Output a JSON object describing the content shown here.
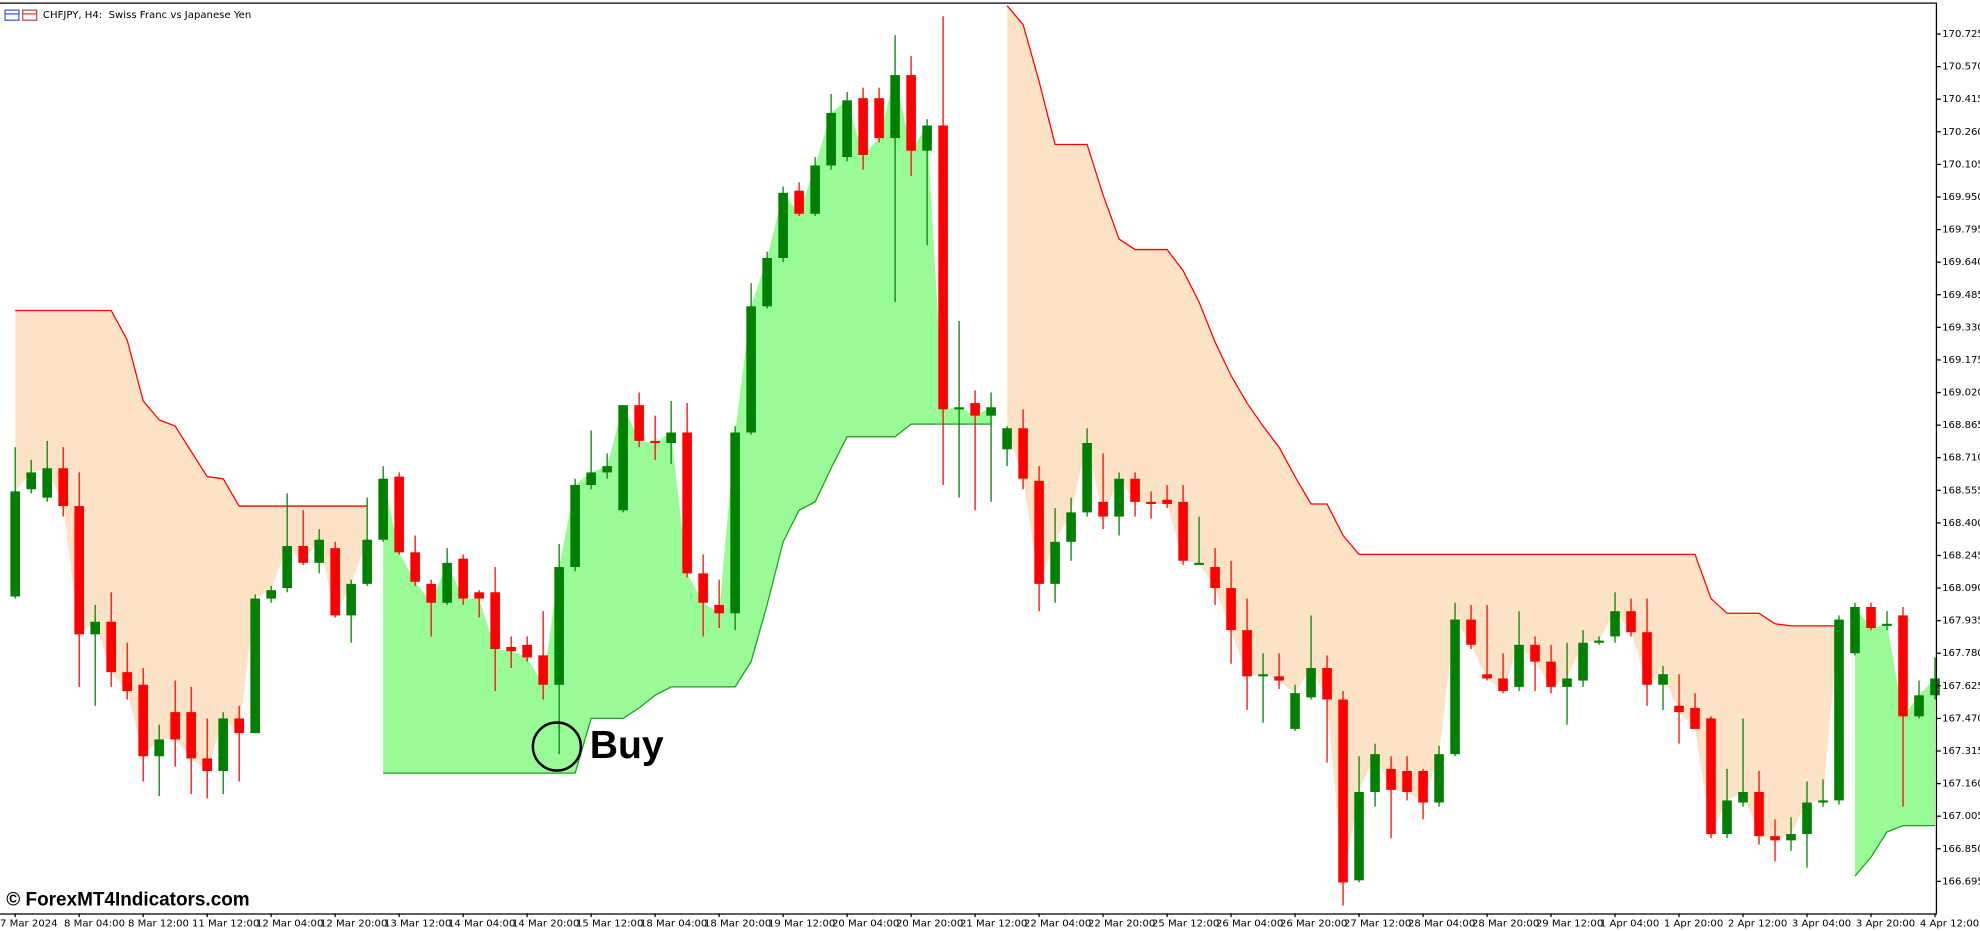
{
  "chart_data": {
    "type": "candlestick",
    "title": "CHFJPY, H4:  Swiss Franc vs Japanese Yen",
    "watermark": "© ForexMT4Indicators.com",
    "annotation": "Buy",
    "up_color": "#008000",
    "down_color": "#ff0000",
    "categories": [
      "7 Mar 2024",
      null,
      null,
      null,
      "8 Mar 04:00",
      null,
      null,
      null,
      "8 Mar 12:00",
      null,
      null,
      null,
      "11 Mar 12:00",
      null,
      null,
      null,
      "12 Mar 04:00",
      null,
      null,
      null,
      "12 Mar 20:00",
      null,
      null,
      null,
      "13 Mar 12:00",
      null,
      null,
      null,
      "14 Mar 04:00",
      null,
      null,
      null,
      "14 Mar 20:00",
      null,
      null,
      null,
      "15 Mar 12:00",
      null,
      null,
      null,
      "18 Mar 04:00",
      null,
      null,
      null,
      "18 Mar 20:00",
      null,
      null,
      null,
      "19 Mar 12:00",
      null,
      null,
      null,
      "20 Mar 04:00",
      null,
      null,
      null,
      "20 Mar 20:00",
      null,
      null,
      null,
      "21 Mar 12:00",
      null,
      null,
      null,
      "22 Mar 04:00",
      null,
      null,
      null,
      "22 Mar 20:00",
      null,
      null,
      null,
      "25 Mar 12:00",
      null,
      null,
      null,
      "26 Mar 04:00",
      null,
      null,
      null,
      "26 Mar 20:00",
      null,
      null,
      null,
      "27 Mar 12:00",
      null,
      null,
      null,
      "28 Mar 04:00",
      null,
      null,
      null,
      "28 Mar 20:00",
      null,
      null,
      null,
      "29 Mar 12:00",
      null,
      null,
      null,
      "1 Apr 04:00",
      null,
      null,
      null,
      "1 Apr 20:00",
      null,
      null,
      null,
      "2 Apr 12:00",
      null,
      null,
      null,
      "3 Apr 04:00",
      null,
      null,
      null,
      "3 Apr 20:00",
      null,
      null,
      null,
      "4 Apr 12:00"
    ],
    "open": [
      168.05,
      168.56,
      168.52,
      168.66,
      168.48,
      167.87,
      167.93,
      167.69,
      167.63,
      167.29,
      167.5,
      167.5,
      167.28,
      167.22,
      167.47,
      167.4,
      168.04,
      168.09,
      168.29,
      168.21,
      168.28,
      167.96,
      168.11,
      168.32,
      168.62,
      168.26,
      168.11,
      168.02,
      168.23,
      168.07,
      168.07,
      167.81,
      167.82,
      167.77,
      167.63,
      168.19,
      168.58,
      168.64,
      168.46,
      168.96,
      168.79,
      168.78,
      168.83,
      168.16,
      168.01,
      167.97,
      168.83,
      169.43,
      169.66,
      169.98,
      169.87,
      170.1,
      170.14,
      170.42,
      170.42,
      170.23,
      170.53,
      170.17,
      170.29,
      168.94,
      168.97,
      168.91,
      168.75,
      168.85,
      168.6,
      168.11,
      168.31,
      168.45,
      168.5,
      168.43,
      168.61,
      168.5,
      168.51,
      168.5,
      168.2,
      168.19,
      168.09,
      167.89,
      167.67,
      167.67,
      167.42,
      167.57,
      167.71,
      167.56,
      166.7,
      167.12,
      167.23,
      167.22,
      167.22,
      167.07,
      167.3,
      167.94,
      167.68,
      167.66,
      167.62,
      167.82,
      167.74,
      167.62,
      167.65,
      167.83,
      167.86,
      167.98,
      167.88,
      167.63,
      167.53,
      167.52,
      167.47,
      166.92,
      167.07,
      167.12,
      166.91,
      166.89,
      166.92,
      167.07,
      167.08,
      167.78,
      168.0,
      167.91,
      167.96,
      167.48,
      167.58
    ],
    "high": [
      168.76,
      168.7,
      168.79,
      168.76,
      168.64,
      168.01,
      168.07,
      167.83,
      167.71,
      167.44,
      167.65,
      167.62,
      167.47,
      167.5,
      167.53,
      168.06,
      168.1,
      168.54,
      168.46,
      168.37,
      168.31,
      168.13,
      168.52,
      168.67,
      168.64,
      168.34,
      168.13,
      168.28,
      168.25,
      168.08,
      168.19,
      167.86,
      167.86,
      167.98,
      168.3,
      168.61,
      168.84,
      168.73,
      168.96,
      169.02,
      168.91,
      168.98,
      168.97,
      168.25,
      168.13,
      168.86,
      169.54,
      169.69,
      170.0,
      170.02,
      170.14,
      170.44,
      170.45,
      170.47,
      170.47,
      170.72,
      170.62,
      170.32,
      170.81,
      169.36,
      169.03,
      169.02,
      168.86,
      168.94,
      168.67,
      168.47,
      168.52,
      168.85,
      168.73,
      168.64,
      168.64,
      168.55,
      168.58,
      168.58,
      168.43,
      168.28,
      168.22,
      168.04,
      167.78,
      167.78,
      167.63,
      167.96,
      167.77,
      167.6,
      167.29,
      167.35,
      167.29,
      167.29,
      167.23,
      167.34,
      168.02,
      168.01,
      168.01,
      167.78,
      167.98,
      167.86,
      167.82,
      167.83,
      167.89,
      167.86,
      168.07,
      168.04,
      168.04,
      167.72,
      167.68,
      167.59,
      167.48,
      167.23,
      167.47,
      167.22,
      166.99,
      167.0,
      167.17,
      167.18,
      167.96,
      168.02,
      168.02,
      167.98,
      168.0,
      167.65,
      167.76
    ],
    "low": [
      168.04,
      168.54,
      168.5,
      168.43,
      167.62,
      167.53,
      167.62,
      167.56,
      167.17,
      167.1,
      167.24,
      167.11,
      167.09,
      167.11,
      167.17,
      167.4,
      168.02,
      168.07,
      168.2,
      168.16,
      167.95,
      167.83,
      168.1,
      168.31,
      168.25,
      168.1,
      167.86,
      168.01,
      168.01,
      167.95,
      167.6,
      167.71,
      167.74,
      167.56,
      167.3,
      168.17,
      168.56,
      168.61,
      168.45,
      168.76,
      168.7,
      168.68,
      168.14,
      167.86,
      167.9,
      167.89,
      168.82,
      169.42,
      169.64,
      169.86,
      169.86,
      170.08,
      170.12,
      170.08,
      170.21,
      169.45,
      170.05,
      169.72,
      168.58,
      168.52,
      168.46,
      168.5,
      168.67,
      168.56,
      167.98,
      168.02,
      168.22,
      168.43,
      168.37,
      168.34,
      168.43,
      168.42,
      168.47,
      168.2,
      168.2,
      168.01,
      167.73,
      167.51,
      167.45,
      167.61,
      167.41,
      167.56,
      167.26,
      166.58,
      166.69,
      167.05,
      166.9,
      167.08,
      166.99,
      167.05,
      167.29,
      167.8,
      167.65,
      167.59,
      167.6,
      167.6,
      167.59,
      167.44,
      167.62,
      167.82,
      167.83,
      167.86,
      167.53,
      167.51,
      167.35,
      167.42,
      166.9,
      166.9,
      167.05,
      166.87,
      166.79,
      166.84,
      166.76,
      167.05,
      167.06,
      167.77,
      167.89,
      167.89,
      167.05,
      167.47,
      167.56
    ],
    "close": [
      168.55,
      168.64,
      168.66,
      168.48,
      167.87,
      167.93,
      167.69,
      167.6,
      167.29,
      167.37,
      167.37,
      167.28,
      167.22,
      167.47,
      167.4,
      168.04,
      168.08,
      168.29,
      168.21,
      168.32,
      167.96,
      168.11,
      168.32,
      168.61,
      168.26,
      168.12,
      168.02,
      168.21,
      168.04,
      168.04,
      167.8,
      167.79,
      167.76,
      167.63,
      168.19,
      168.58,
      168.64,
      168.67,
      168.96,
      168.79,
      168.78,
      168.83,
      168.16,
      168.02,
      167.97,
      168.83,
      169.43,
      169.66,
      169.97,
      169.87,
      170.1,
      170.35,
      170.41,
      170.15,
      170.23,
      170.53,
      170.17,
      170.29,
      168.94,
      168.95,
      168.91,
      168.95,
      168.85,
      168.61,
      168.11,
      168.31,
      168.45,
      168.78,
      168.43,
      168.61,
      168.5,
      168.49,
      168.49,
      168.22,
      168.21,
      168.09,
      167.89,
      167.67,
      167.68,
      167.65,
      167.59,
      167.71,
      167.56,
      166.69,
      167.12,
      167.3,
      167.13,
      167.12,
      167.07,
      167.3,
      167.94,
      167.82,
      167.66,
      167.6,
      167.82,
      167.74,
      167.62,
      167.66,
      167.83,
      167.84,
      167.98,
      167.88,
      167.63,
      167.68,
      167.5,
      167.42,
      166.92,
      167.08,
      167.12,
      166.91,
      166.89,
      166.92,
      167.07,
      167.08,
      167.94,
      168.0,
      167.9,
      167.92,
      167.48,
      167.58,
      167.66
    ],
    "resistance": {
      "color": "#ff0000",
      "fill": "#fde3c5",
      "values": [
        169.41,
        169.41,
        169.41,
        169.41,
        169.41,
        169.41,
        169.41,
        169.27,
        168.98,
        168.89,
        168.86,
        168.74,
        168.62,
        168.61,
        168.48,
        168.48,
        168.48,
        168.48,
        168.48,
        168.48,
        168.48,
        168.48,
        168.48,
        null,
        null,
        null,
        null,
        null,
        null,
        null,
        null,
        null,
        null,
        null,
        null,
        null,
        null,
        null,
        null,
        null,
        null,
        null,
        null,
        null,
        null,
        null,
        null,
        null,
        null,
        null,
        null,
        null,
        null,
        null,
        null,
        null,
        null,
        null,
        null,
        null,
        null,
        null,
        170.86,
        170.77,
        170.5,
        170.2,
        170.2,
        170.2,
        169.96,
        169.75,
        169.7,
        169.7,
        169.7,
        169.6,
        169.45,
        169.26,
        169.1,
        168.97,
        168.86,
        168.76,
        168.62,
        168.49,
        168.49,
        168.34,
        168.25,
        168.25,
        168.25,
        168.25,
        168.25,
        168.25,
        168.25,
        168.25,
        168.25,
        168.25,
        168.25,
        168.25,
        168.25,
        168.25,
        168.25,
        168.25,
        168.25,
        168.25,
        168.25,
        168.25,
        168.25,
        168.25,
        168.04,
        167.97,
        167.97,
        167.97,
        167.92,
        167.91,
        167.91,
        167.91,
        167.91,
        null,
        null,
        null,
        null,
        null,
        null
      ]
    },
    "support": {
      "color": "#1e9e1e",
      "fill": "#98fb98",
      "values": [
        null,
        null,
        null,
        null,
        null,
        null,
        null,
        null,
        null,
        null,
        null,
        null,
        null,
        null,
        null,
        null,
        null,
        null,
        null,
        null,
        null,
        null,
        null,
        167.21,
        167.21,
        167.21,
        167.21,
        167.21,
        167.21,
        167.21,
        167.21,
        167.21,
        167.21,
        167.21,
        167.21,
        167.21,
        167.47,
        167.47,
        167.47,
        167.52,
        167.58,
        167.62,
        167.62,
        167.62,
        167.62,
        167.62,
        167.74,
        168.01,
        168.31,
        168.46,
        168.5,
        168.66,
        168.81,
        168.81,
        168.81,
        168.81,
        168.87,
        168.87,
        168.87,
        168.87,
        168.87,
        168.87,
        null,
        null,
        null,
        null,
        null,
        null,
        null,
        null,
        null,
        null,
        null,
        null,
        null,
        null,
        null,
        null,
        null,
        null,
        null,
        null,
        null,
        null,
        null,
        null,
        null,
        null,
        null,
        null,
        null,
        null,
        null,
        null,
        null,
        null,
        null,
        null,
        null,
        null,
        null,
        null,
        null,
        null,
        null,
        null,
        null,
        null,
        null,
        null,
        null,
        null,
        null,
        null,
        null,
        166.72,
        166.81,
        166.93,
        166.96,
        166.96,
        166.96
      ]
    },
    "ylim": [
      166.543,
      170.869
    ],
    "yticks": [
      170.725,
      {
        "value": 170.57,
        "label": "170.570"
      },
      170.415,
      {
        "value": 170.26,
        "label": "170.260"
      },
      170.105,
      {
        "value": 169.95,
        "label": "169.950"
      },
      169.795,
      {
        "value": 169.64,
        "label": "169.640"
      },
      169.485,
      {
        "value": 169.33,
        "label": "169.330"
      },
      169.175,
      {
        "value": 169.02,
        "label": "169.020"
      },
      168.865,
      {
        "value": 168.71,
        "label": "168.710"
      },
      168.555,
      {
        "value": 168.4,
        "label": "168.400"
      },
      168.245,
      {
        "value": 168.09,
        "label": "168.090"
      },
      167.935,
      {
        "value": 167.78,
        "label": "167.780"
      },
      167.625,
      {
        "value": 167.47,
        "label": "167.470"
      },
      167.315,
      {
        "value": 167.16,
        "label": "167.160"
      },
      167.005,
      {
        "value": 166.85,
        "label": "166.850"
      },
      166.695
    ],
    "grid": false
  }
}
